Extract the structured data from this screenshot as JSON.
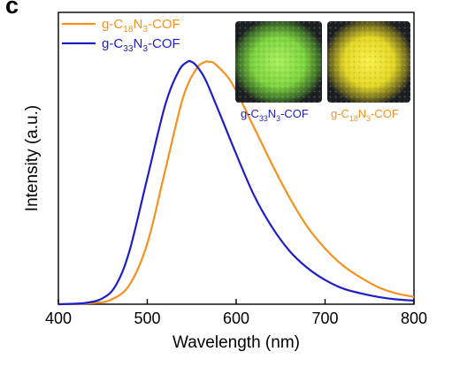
{
  "panel_label": "c",
  "chart_data": {
    "type": "line",
    "xlabel": "Wavelength (nm)",
    "ylabel": "Intensity (a.u.)",
    "xlim": [
      400,
      800
    ],
    "ylim": [
      0,
      1.0
    ],
    "x_ticks": [
      "400",
      "500",
      "600",
      "700",
      "800"
    ],
    "y_ticks": [],
    "legend_position": "top-left",
    "grid": false,
    "series": [
      {
        "name_parts": [
          "g-C",
          "18",
          "N",
          "3",
          "-COF"
        ],
        "color": "#F5921E",
        "x": [
          400,
          440,
          460,
          480,
          500,
          520,
          540,
          555,
          565,
          570,
          575,
          590,
          600,
          620,
          640,
          660,
          680,
          700,
          720,
          740,
          760,
          780,
          800
        ],
        "y": [
          0.0,
          0.005,
          0.02,
          0.08,
          0.25,
          0.55,
          0.85,
          0.97,
          1.0,
          1.0,
          0.995,
          0.94,
          0.88,
          0.73,
          0.58,
          0.44,
          0.32,
          0.23,
          0.16,
          0.11,
          0.07,
          0.045,
          0.03
        ]
      },
      {
        "name_parts": [
          "g-C",
          "33",
          "N",
          "3",
          "-COF"
        ],
        "color": "#1E1EC8",
        "x": [
          400,
          430,
          450,
          465,
          480,
          500,
          520,
          535,
          545,
          550,
          555,
          565,
          580,
          600,
          620,
          640,
          660,
          680,
          700,
          720,
          740,
          760,
          780,
          800
        ],
        "y": [
          0.0,
          0.005,
          0.025,
          0.08,
          0.22,
          0.52,
          0.82,
          0.96,
          1.0,
          1.0,
          0.985,
          0.93,
          0.8,
          0.62,
          0.45,
          0.32,
          0.22,
          0.15,
          0.1,
          0.065,
          0.045,
          0.03,
          0.02,
          0.015
        ]
      }
    ],
    "inset_images": [
      {
        "label_parts": [
          "g-C",
          "33",
          "N",
          "3",
          "-COF"
        ],
        "label_color": "#1E1EC8",
        "powder_color": "#8CE04C"
      },
      {
        "label_parts": [
          "g-C",
          "18",
          "N",
          "3",
          "-COF"
        ],
        "label_color": "#F5921E",
        "powder_color": "#E8E22A"
      }
    ]
  }
}
